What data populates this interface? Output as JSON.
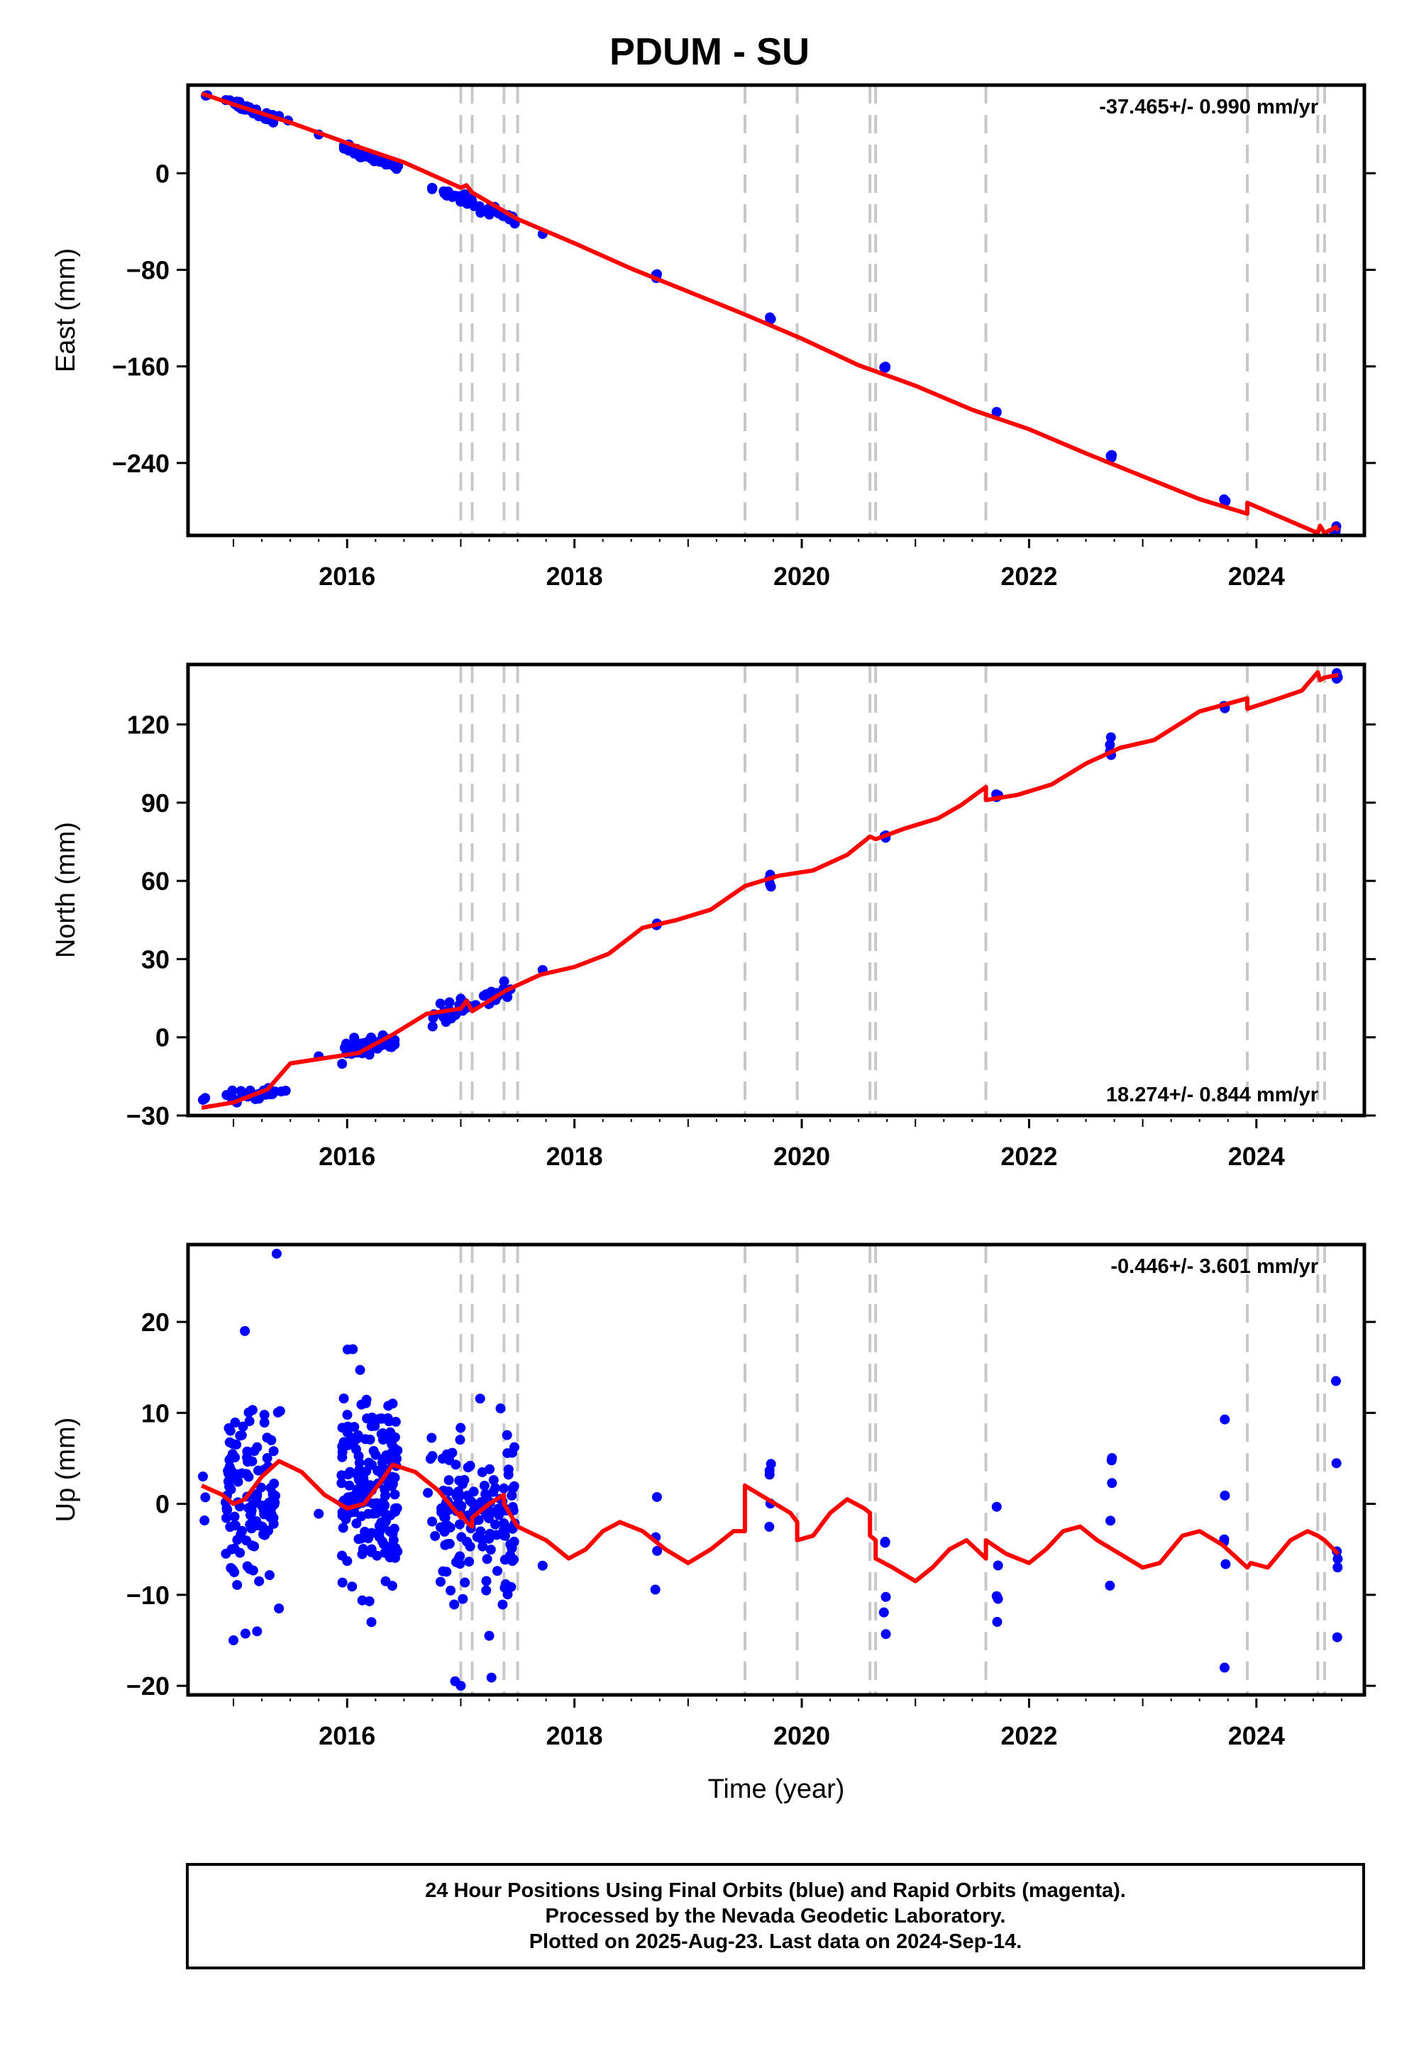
{
  "title": "PDUM - SU",
  "colors": {
    "data": "#0000ff",
    "model": "#ff0000",
    "events": "#c8c8c8",
    "frame": "#000000"
  },
  "chart_data": [
    {
      "type": "scatter",
      "ylabel": "East (mm)",
      "xlabel": "",
      "rate": "-37.465+/- 0.990 mm/yr",
      "rate_position": "top-right",
      "xlim": [
        2014.6,
        2024.95
      ],
      "ylim": [
        -300,
        73
      ],
      "xticks": [
        2016,
        2018,
        2020,
        2022,
        2024
      ],
      "yticks": [
        0,
        -80,
        -160,
        -240
      ],
      "events": [
        2017.0,
        2017.1,
        2017.38,
        2017.5,
        2019.5,
        2019.96,
        2020.6,
        2020.65,
        2021.62,
        2023.92,
        2024.54,
        2024.6
      ],
      "model": [
        [
          2014.72,
          66
        ],
        [
          2015.0,
          57
        ],
        [
          2015.5,
          42
        ],
        [
          2016.0,
          25
        ],
        [
          2016.5,
          9
        ],
        [
          2017.0,
          -12
        ],
        [
          2017.05,
          -10
        ],
        [
          2017.1,
          -16
        ],
        [
          2017.5,
          -38
        ],
        [
          2018.0,
          -58
        ],
        [
          2018.5,
          -79
        ],
        [
          2019.0,
          -98
        ],
        [
          2019.5,
          -117
        ],
        [
          2020.0,
          -137
        ],
        [
          2020.5,
          -159
        ],
        [
          2021.0,
          -176
        ],
        [
          2021.5,
          -196
        ],
        [
          2022.0,
          -212
        ],
        [
          2022.5,
          -232
        ],
        [
          2023.0,
          -251
        ],
        [
          2023.5,
          -270
        ],
        [
          2023.92,
          -282
        ],
        [
          2023.92,
          -273
        ],
        [
          2024.54,
          -298
        ],
        [
          2024.56,
          -292
        ],
        [
          2024.6,
          -298
        ],
        [
          2024.7,
          -293
        ],
        [
          2024.72,
          -296
        ]
      ],
      "clusters": [
        {
          "x": 2014.75,
          "n": 2,
          "xr": 0.02,
          "base": 66,
          "slope": -37.5,
          "sd": 1.5
        },
        {
          "x": 2015.15,
          "n": 35,
          "xr": 0.22,
          "base": 53,
          "slope": -37.5,
          "sd": 2.0
        },
        {
          "x": 2015.45,
          "n": 2,
          "xr": 0.05,
          "base": 46,
          "slope": -37.5,
          "sd": 1.0
        },
        {
          "x": 2015.75,
          "n": 1,
          "xr": 0.0,
          "base": 32,
          "slope": -37.5,
          "sd": 0.5
        },
        {
          "x": 2016.2,
          "n": 60,
          "xr": 0.25,
          "base": 14,
          "slope": -37.5,
          "sd": 2.0
        },
        {
          "x": 2016.75,
          "n": 3,
          "xr": 0.05,
          "base": -12,
          "slope": -37.5,
          "sd": 1.5
        },
        {
          "x": 2017.15,
          "n": 40,
          "xr": 0.33,
          "base": -27,
          "slope": -37.5,
          "sd": 2.0
        },
        {
          "x": 2017.72,
          "n": 1,
          "xr": 0.0,
          "base": -50,
          "slope": -37.5,
          "sd": 0.5
        },
        {
          "x": 2018.72,
          "n": 3,
          "xr": 0.01,
          "base": -85,
          "slope": 0,
          "sd": 1.5
        },
        {
          "x": 2019.72,
          "n": 3,
          "xr": 0.01,
          "base": -121,
          "slope": 0,
          "sd": 1.5
        },
        {
          "x": 2020.73,
          "n": 3,
          "xr": 0.01,
          "base": -163,
          "slope": 0,
          "sd": 1.5
        },
        {
          "x": 2021.72,
          "n": 2,
          "xr": 0.01,
          "base": -198,
          "slope": 0,
          "sd": 1.0
        },
        {
          "x": 2022.72,
          "n": 4,
          "xr": 0.01,
          "base": -233,
          "slope": 0,
          "sd": 1.5
        },
        {
          "x": 2023.72,
          "n": 3,
          "xr": 0.01,
          "base": -272,
          "slope": 0,
          "sd": 1.5
        },
        {
          "x": 2024.7,
          "n": 4,
          "xr": 0.02,
          "base": -296,
          "slope": 0,
          "sd": 1.5
        }
      ]
    },
    {
      "type": "scatter",
      "ylabel": "North (mm)",
      "xlabel": "",
      "rate": "18.274+/- 0.844 mm/yr",
      "rate_position": "bottom-right",
      "xlim": [
        2014.6,
        2024.95
      ],
      "ylim": [
        -30,
        143
      ],
      "xticks": [
        2016,
        2018,
        2020,
        2022,
        2024
      ],
      "yticks": [
        120,
        90,
        60,
        30,
        0,
        -30
      ],
      "events": [
        2017.0,
        2017.1,
        2017.38,
        2017.5,
        2019.5,
        2019.96,
        2020.6,
        2020.65,
        2021.62,
        2023.92,
        2024.54,
        2024.6
      ],
      "model": [
        [
          2014.72,
          -27
        ],
        [
          2015.0,
          -25
        ],
        [
          2015.3,
          -20
        ],
        [
          2015.5,
          -10
        ],
        [
          2015.8,
          -8
        ],
        [
          2016.1,
          -6
        ],
        [
          2016.4,
          1
        ],
        [
          2016.7,
          9
        ],
        [
          2017.0,
          11
        ],
        [
          2017.05,
          14
        ],
        [
          2017.1,
          10
        ],
        [
          2017.4,
          18
        ],
        [
          2017.7,
          24
        ],
        [
          2018.0,
          27
        ],
        [
          2018.3,
          32
        ],
        [
          2018.6,
          42
        ],
        [
          2018.9,
          45
        ],
        [
          2019.2,
          49
        ],
        [
          2019.5,
          58
        ],
        [
          2019.8,
          62
        ],
        [
          2020.1,
          64
        ],
        [
          2020.4,
          70
        ],
        [
          2020.6,
          77
        ],
        [
          2020.65,
          76
        ],
        [
          2020.9,
          80
        ],
        [
          2021.2,
          84
        ],
        [
          2021.4,
          89
        ],
        [
          2021.62,
          96
        ],
        [
          2021.62,
          91
        ],
        [
          2021.9,
          93
        ],
        [
          2022.2,
          97
        ],
        [
          2022.5,
          105
        ],
        [
          2022.8,
          111
        ],
        [
          2023.1,
          114
        ],
        [
          2023.5,
          125
        ],
        [
          2023.92,
          130
        ],
        [
          2023.92,
          126
        ],
        [
          2024.2,
          130
        ],
        [
          2024.4,
          133
        ],
        [
          2024.54,
          140
        ],
        [
          2024.56,
          137
        ],
        [
          2024.6,
          138
        ],
        [
          2024.72,
          139
        ]
      ],
      "clusters": [
        {
          "x": 2014.75,
          "n": 3,
          "xr": 0.02,
          "base": -25,
          "slope": 0,
          "sd": 1.0
        },
        {
          "x": 2015.15,
          "n": 30,
          "xr": 0.22,
          "base": -22,
          "slope": 4,
          "sd": 1.5
        },
        {
          "x": 2015.45,
          "n": 2,
          "xr": 0.03,
          "base": -21,
          "slope": 0,
          "sd": 1.0
        },
        {
          "x": 2015.75,
          "n": 1,
          "xr": 0.0,
          "base": -7,
          "slope": 0,
          "sd": 0.5
        },
        {
          "x": 2016.2,
          "n": 55,
          "xr": 0.25,
          "base": -3,
          "slope": 8,
          "sd": 1.5
        },
        {
          "x": 2016.75,
          "n": 3,
          "xr": 0.05,
          "base": 8,
          "slope": 0,
          "sd": 1.5
        },
        {
          "x": 2017.15,
          "n": 40,
          "xr": 0.33,
          "base": 13,
          "slope": 15,
          "sd": 1.8
        },
        {
          "x": 2017.72,
          "n": 1,
          "xr": 0.0,
          "base": 25,
          "slope": 0,
          "sd": 0.5
        },
        {
          "x": 2018.72,
          "n": 3,
          "xr": 0.01,
          "base": 43,
          "slope": 0,
          "sd": 1.0
        },
        {
          "x": 2019.72,
          "n": 4,
          "xr": 0.01,
          "base": 61,
          "slope": 0,
          "sd": 1.8
        },
        {
          "x": 2020.73,
          "n": 3,
          "xr": 0.01,
          "base": 78,
          "slope": 0,
          "sd": 1.0
        },
        {
          "x": 2021.72,
          "n": 3,
          "xr": 0.01,
          "base": 93,
          "slope": 0,
          "sd": 1.0
        },
        {
          "x": 2022.72,
          "n": 4,
          "xr": 0.01,
          "base": 111,
          "slope": 0,
          "sd": 2.0
        },
        {
          "x": 2023.72,
          "n": 3,
          "xr": 0.01,
          "base": 127,
          "slope": 0,
          "sd": 1.5
        },
        {
          "x": 2024.7,
          "n": 4,
          "xr": 0.02,
          "base": 139,
          "slope": 0,
          "sd": 1.0
        }
      ]
    },
    {
      "type": "scatter",
      "ylabel": "Up (mm)",
      "xlabel": "Time (year)",
      "rate": "-0.446+/- 3.601 mm/yr",
      "rate_position": "top-right",
      "xlim": [
        2014.6,
        2024.95
      ],
      "ylim": [
        -21,
        28.5
      ],
      "xticks": [
        2016,
        2018,
        2020,
        2022,
        2024
      ],
      "yticks": [
        20,
        10,
        0,
        -10,
        -20
      ],
      "events": [
        2017.0,
        2017.1,
        2017.38,
        2017.5,
        2019.5,
        2019.96,
        2020.6,
        2020.65,
        2021.62,
        2023.92,
        2024.54,
        2024.6
      ],
      "model": [
        [
          2014.72,
          2
        ],
        [
          2014.9,
          1
        ],
        [
          2015.0,
          0
        ],
        [
          2015.1,
          0.5
        ],
        [
          2015.25,
          3
        ],
        [
          2015.4,
          4.7
        ],
        [
          2015.6,
          3.5
        ],
        [
          2015.8,
          1
        ],
        [
          2016.0,
          -0.5
        ],
        [
          2016.15,
          0
        ],
        [
          2016.3,
          2.5
        ],
        [
          2016.4,
          4.3
        ],
        [
          2016.6,
          3.5
        ],
        [
          2016.8,
          1.5
        ],
        [
          2017.0,
          -1.5
        ],
        [
          2017.0,
          -1
        ],
        [
          2017.05,
          -2
        ],
        [
          2017.1,
          -2.5
        ],
        [
          2017.1,
          -1.5
        ],
        [
          2017.25,
          0
        ],
        [
          2017.38,
          1
        ],
        [
          2017.38,
          0
        ],
        [
          2017.5,
          -2.5
        ],
        [
          2017.75,
          -4
        ],
        [
          2017.95,
          -6
        ],
        [
          2018.1,
          -5
        ],
        [
          2018.25,
          -3
        ],
        [
          2018.4,
          -2
        ],
        [
          2018.6,
          -3
        ],
        [
          2018.8,
          -5
        ],
        [
          2019.0,
          -6.5
        ],
        [
          2019.2,
          -5
        ],
        [
          2019.4,
          -3
        ],
        [
          2019.5,
          -3
        ],
        [
          2019.5,
          2
        ],
        [
          2019.7,
          0.5
        ],
        [
          2019.9,
          -1
        ],
        [
          2019.96,
          -2
        ],
        [
          2019.96,
          -4
        ],
        [
          2020.1,
          -3.5
        ],
        [
          2020.25,
          -1
        ],
        [
          2020.4,
          0.5
        ],
        [
          2020.55,
          -0.5
        ],
        [
          2020.6,
          -1
        ],
        [
          2020.6,
          -3.5
        ],
        [
          2020.65,
          -4
        ],
        [
          2020.65,
          -6
        ],
        [
          2020.8,
          -7
        ],
        [
          2021.0,
          -8.5
        ],
        [
          2021.15,
          -7
        ],
        [
          2021.3,
          -5
        ],
        [
          2021.45,
          -4
        ],
        [
          2021.62,
          -6
        ],
        [
          2021.62,
          -4
        ],
        [
          2021.8,
          -5.5
        ],
        [
          2022.0,
          -6.5
        ],
        [
          2022.15,
          -5
        ],
        [
          2022.3,
          -3
        ],
        [
          2022.45,
          -2.5
        ],
        [
          2022.6,
          -4
        ],
        [
          2022.8,
          -5.5
        ],
        [
          2023.0,
          -7
        ],
        [
          2023.15,
          -6.5
        ],
        [
          2023.35,
          -3.5
        ],
        [
          2023.5,
          -3
        ],
        [
          2023.7,
          -4.5
        ],
        [
          2023.92,
          -7
        ],
        [
          2023.95,
          -6.5
        ],
        [
          2024.1,
          -7
        ],
        [
          2024.3,
          -4
        ],
        [
          2024.45,
          -3
        ],
        [
          2024.54,
          -3.5
        ],
        [
          2024.6,
          -4
        ],
        [
          2024.72,
          -5.5
        ]
      ],
      "clusters": [
        {
          "x": 2014.75,
          "n": 3,
          "xr": 0.02,
          "base": 0,
          "slope": 0,
          "sd": 3.0
        },
        {
          "x": 2015.15,
          "n": 120,
          "xr": 0.22,
          "base": 1,
          "slope": 0,
          "sd": 4.5
        },
        {
          "x": 2015.4,
          "n": 2,
          "xr": 0.03,
          "base": 9,
          "slope": 0,
          "sd": 1.0
        },
        {
          "x": 2015.75,
          "n": 1,
          "xr": 0.0,
          "base": -1.5,
          "slope": 0,
          "sd": 0.5
        },
        {
          "x": 2016.2,
          "n": 180,
          "xr": 0.25,
          "base": 2,
          "slope": 0,
          "sd": 5.0
        },
        {
          "x": 2016.75,
          "n": 6,
          "xr": 0.05,
          "base": 2,
          "slope": 0,
          "sd": 4.0
        },
        {
          "x": 2017.15,
          "n": 150,
          "xr": 0.33,
          "base": -1,
          "slope": 0,
          "sd": 4.5
        },
        {
          "x": 2017.72,
          "n": 1,
          "xr": 0.0,
          "base": -7,
          "slope": 0,
          "sd": 0.5
        },
        {
          "x": 2018.72,
          "n": 4,
          "xr": 0.01,
          "base": -4,
          "slope": 0,
          "sd": 5.0
        },
        {
          "x": 2019.72,
          "n": 5,
          "xr": 0.01,
          "base": 0,
          "slope": 0,
          "sd": 4.0
        },
        {
          "x": 2020.73,
          "n": 5,
          "xr": 0.01,
          "base": -7,
          "slope": 0,
          "sd": 3.5
        },
        {
          "x": 2021.72,
          "n": 5,
          "xr": 0.01,
          "base": -6,
          "slope": 0,
          "sd": 3.5
        },
        {
          "x": 2022.72,
          "n": 5,
          "xr": 0.01,
          "base": -2,
          "slope": 0,
          "sd": 6.0
        },
        {
          "x": 2023.72,
          "n": 5,
          "xr": 0.01,
          "base": -6,
          "slope": 0,
          "sd": 6.0
        },
        {
          "x": 2024.7,
          "n": 5,
          "xr": 0.02,
          "base": -4,
          "slope": 0,
          "sd": 7.0
        }
      ],
      "outliers": [
        [
          2015.38,
          27.5
        ],
        [
          2015.1,
          19
        ],
        [
          2015.0,
          -15
        ],
        [
          2015.4,
          -11.5
        ],
        [
          2016.05,
          17
        ],
        [
          2016.95,
          -19.5
        ],
        [
          2017.0,
          -20
        ],
        [
          2017.25,
          -14.5
        ],
        [
          2024.7,
          13.5
        ],
        [
          2023.72,
          -18
        ]
      ]
    }
  ],
  "footer": {
    "line1": "24 Hour Positions Using Final Orbits (blue) and Rapid Orbits (magenta).",
    "line2": "Processed by the Nevada Geodetic Laboratory.",
    "line3": "Plotted on 2025-Aug-23. Last data on 2024-Sep-14."
  }
}
